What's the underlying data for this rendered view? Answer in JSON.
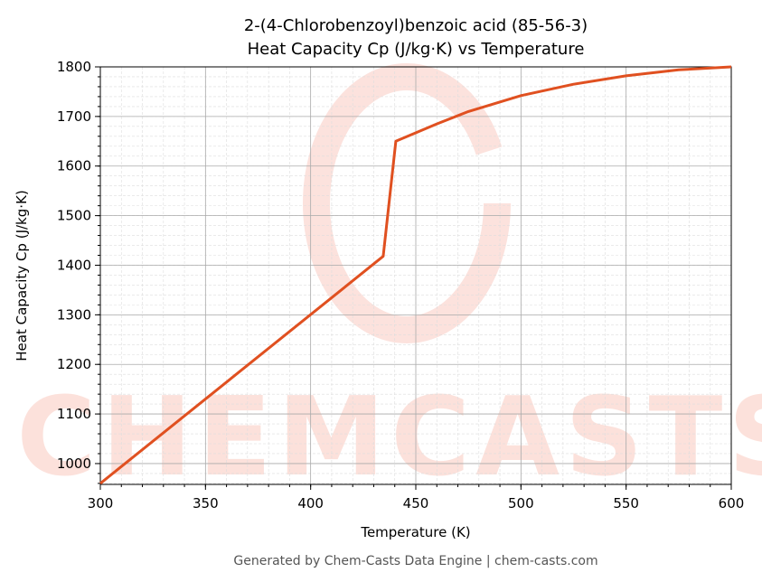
{
  "chart_data": {
    "type": "line",
    "title": "2-(4-Chlorobenzoyl)benzoic acid (85-56-3)",
    "subtitle": "Heat Capacity Cp (J/kg·K) vs Temperature",
    "xlabel": "Temperature (K)",
    "ylabel": "Heat Capacity Cp (J/kg·K)",
    "xlim": [
      300,
      600
    ],
    "ylim": [
      958,
      1800
    ],
    "xticks": [
      300,
      350,
      400,
      450,
      500,
      550,
      600
    ],
    "yticks": [
      1000,
      1100,
      1200,
      1300,
      1400,
      1500,
      1600,
      1700,
      1800
    ],
    "grid": true,
    "line_color": "#e05020",
    "series": [
      {
        "x": [
          300,
          434.5,
          440.5,
          460,
          475,
          500,
          525,
          550,
          575,
          600
        ],
        "values": [
          960,
          1418,
          1650,
          1685,
          1710,
          1742,
          1765,
          1782,
          1794,
          1800
        ]
      }
    ],
    "watermark": "CHEMCASTS",
    "footer": "Generated by Chem-Casts Data Engine | chem-casts.com"
  }
}
